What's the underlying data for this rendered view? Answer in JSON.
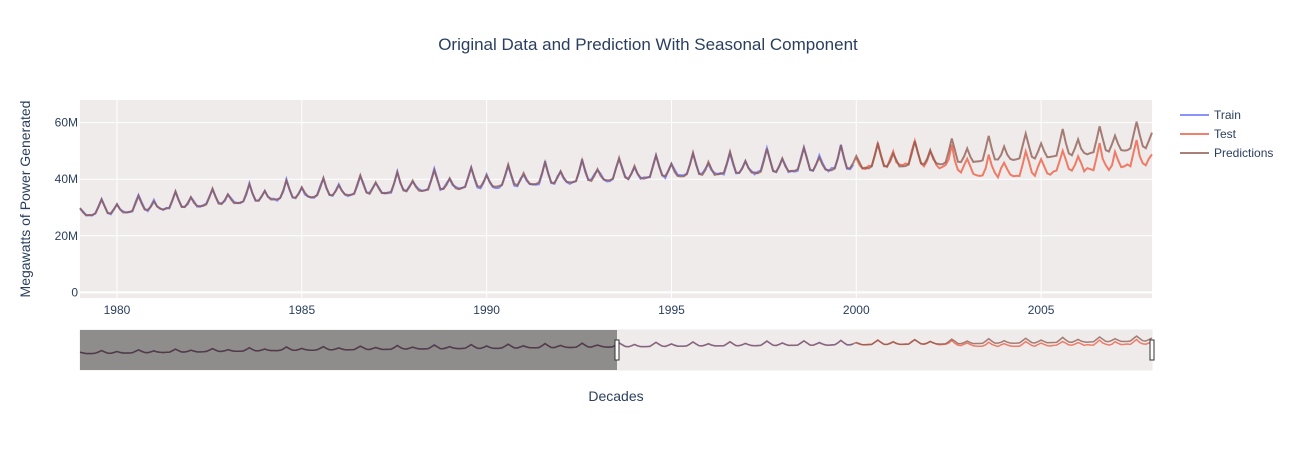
{
  "chart_data": {
    "type": "line",
    "title": "Original Data and Prediction With Seasonal Component",
    "xlabel": "Decades",
    "ylabel": "Megawatts of Power Generated",
    "x_ticks": [
      "1980",
      "1985",
      "1990",
      "1995",
      "2000",
      "2005"
    ],
    "y_ticks": [
      "0",
      "20M",
      "40M",
      "60M"
    ],
    "xlim": [
      "1979-01",
      "2008-01"
    ],
    "ylim": [
      -2000000,
      68000000
    ],
    "grid": true,
    "legend_position": "top-right",
    "rangeslider": true,
    "series": [
      {
        "name": "Train",
        "color": "#636efa",
        "start": "1979-01",
        "end": "1999-12"
      },
      {
        "name": "Test",
        "color": "#ef553b",
        "start": "2000-01",
        "end": "2008-01"
      },
      {
        "name": "Predictions",
        "color": "#8c564b",
        "start": "1979-01",
        "end": "2008-01"
      }
    ],
    "seasonal_model": {
      "trend_points": [
        [
          1979,
          29000000
        ],
        [
          1985,
          36000000
        ],
        [
          1990,
          40000000
        ],
        [
          1995,
          44000000
        ],
        [
          2000,
          47000000
        ],
        [
          2005,
          51000000
        ],
        [
          2008,
          55000000
        ]
      ],
      "summer_amplitude": 0.18,
      "winter_amplitude": 0.1,
      "test_drift_from_2002": -0.12
    }
  }
}
